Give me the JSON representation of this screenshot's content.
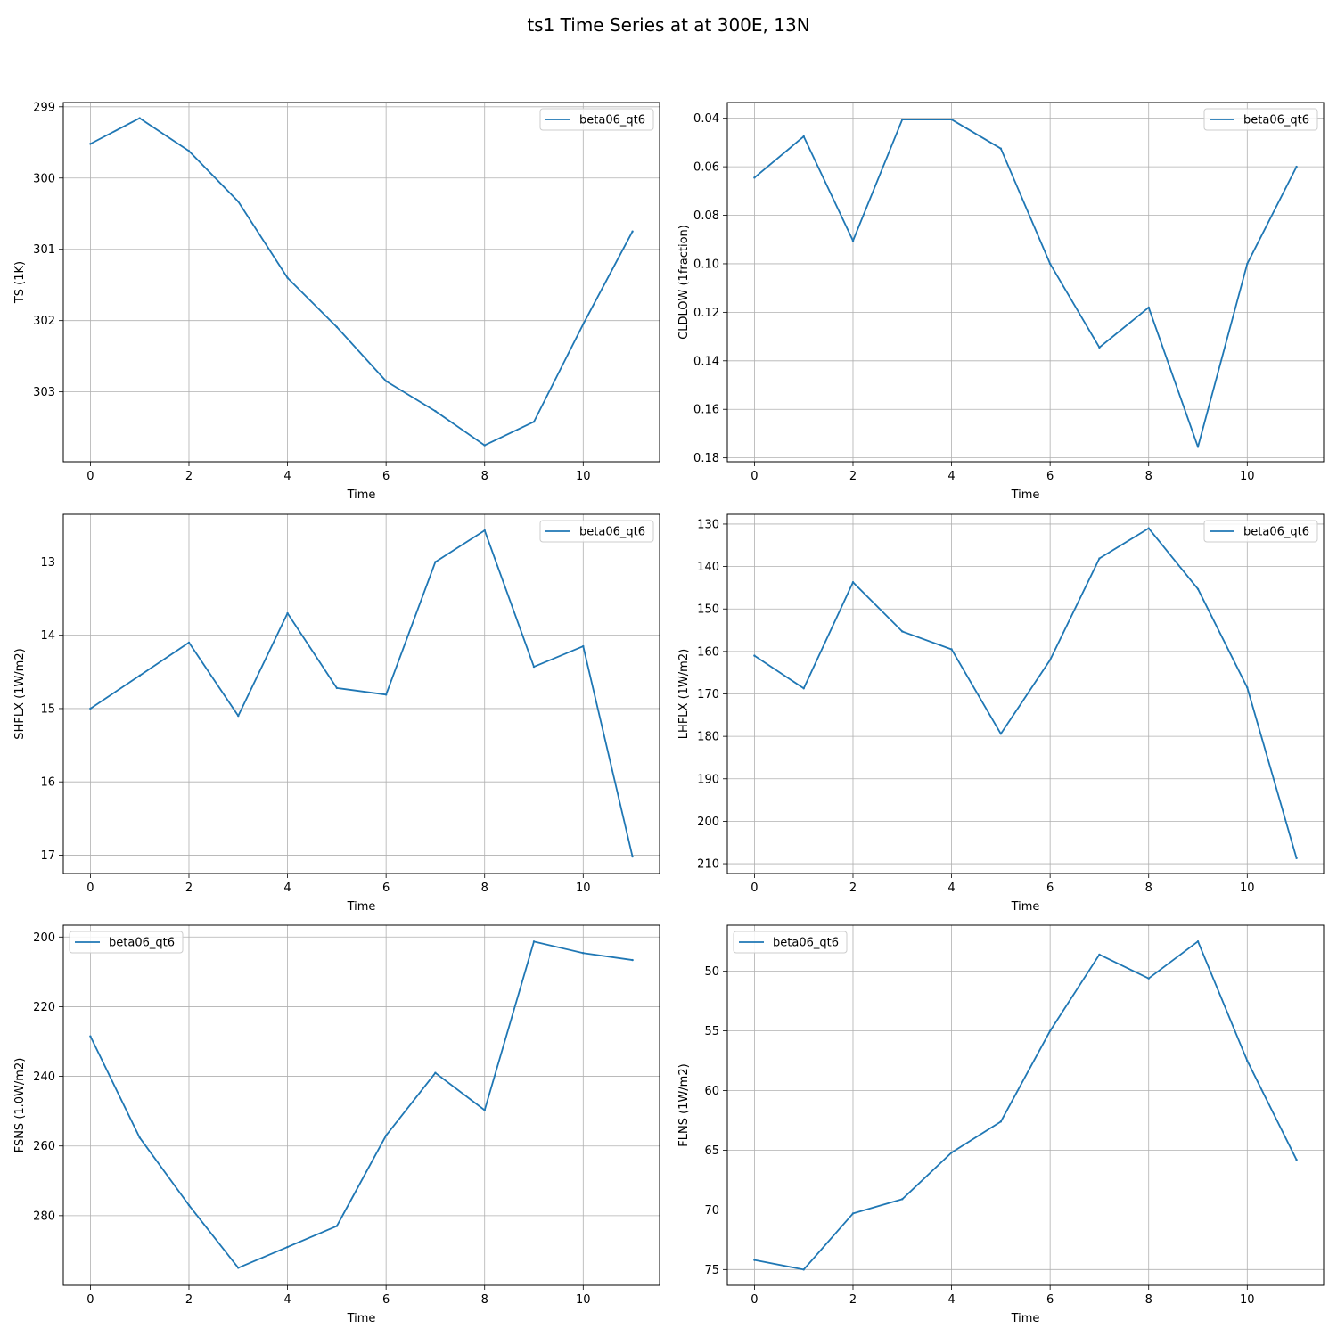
{
  "figure": {
    "title": "ts1 Time Series at at 300E, 13N"
  },
  "colors": {
    "series": "#1f77b4",
    "grid": "#b0b0b0",
    "axis": "#000000"
  },
  "chart_data": [
    {
      "type": "line",
      "xlabel": "Time",
      "ylabel": "TS (1K)",
      "x": [
        0,
        1,
        2,
        3,
        4,
        5,
        6,
        7,
        8,
        9,
        10,
        11
      ],
      "xlim": [
        -0.55,
        11.55
      ],
      "xticks": [
        0,
        2,
        4,
        6,
        8,
        10
      ],
      "ylim": [
        303.98,
        298.94
      ],
      "yticks": [
        299,
        300,
        301,
        302,
        303
      ],
      "yinverted": true,
      "grid": true,
      "legend": "upper right",
      "series": [
        {
          "name": "beta06_qt6",
          "values": [
            299.52,
            299.16,
            299.62,
            300.33,
            301.4,
            302.09,
            302.85,
            303.27,
            303.75,
            303.42,
            302.05,
            300.75
          ]
        }
      ]
    },
    {
      "type": "line",
      "xlabel": "Time",
      "ylabel": "CLDLOW (1fraction)",
      "x": [
        0,
        1,
        2,
        3,
        4,
        5,
        6,
        7,
        8,
        9,
        10,
        11
      ],
      "xlim": [
        -0.55,
        11.55
      ],
      "xticks": [
        0,
        2,
        4,
        6,
        8,
        10
      ],
      "ylim": [
        0.1816,
        0.0335
      ],
      "yticks": [
        0.04,
        0.06,
        0.08,
        0.1,
        0.12,
        0.14,
        0.16,
        0.18
      ],
      "ytick_labels": [
        "0.04",
        "0.06",
        "0.08",
        "0.10",
        "0.12",
        "0.14",
        "0.16",
        "0.18"
      ],
      "yinverted": true,
      "grid": true,
      "legend": "upper right",
      "series": [
        {
          "name": "beta06_qt6",
          "values": [
            0.0645,
            0.0475,
            0.0905,
            0.0405,
            0.0405,
            0.0525,
            0.1,
            0.1345,
            0.118,
            0.1755,
            0.1,
            0.06
          ]
        }
      ]
    },
    {
      "type": "line",
      "xlabel": "Time",
      "ylabel": "SHFLX (1W/m2)",
      "x": [
        0,
        1,
        2,
        3,
        4,
        5,
        6,
        7,
        8,
        9,
        10,
        11
      ],
      "xlim": [
        -0.55,
        11.55
      ],
      "xticks": [
        0,
        2,
        4,
        6,
        8,
        10
      ],
      "ylim": [
        17.25,
        12.35
      ],
      "yticks": [
        13,
        14,
        15,
        16,
        17
      ],
      "yinverted": true,
      "grid": true,
      "legend": "upper right",
      "series": [
        {
          "name": "beta06_qt6",
          "values": [
            15.0,
            14.55,
            14.1,
            15.1,
            13.7,
            14.72,
            14.81,
            13.0,
            12.57,
            14.43,
            14.15,
            17.02
          ]
        }
      ]
    },
    {
      "type": "line",
      "xlabel": "Time",
      "ylabel": "LHFLX (1W/m2)",
      "x": [
        0,
        1,
        2,
        3,
        4,
        5,
        6,
        7,
        8,
        9,
        10,
        11
      ],
      "xlim": [
        -0.55,
        11.55
      ],
      "xticks": [
        0,
        2,
        4,
        6,
        8,
        10
      ],
      "ylim": [
        212.3,
        127.7
      ],
      "yticks": [
        130,
        140,
        150,
        160,
        170,
        180,
        190,
        200,
        210
      ],
      "yinverted": true,
      "grid": true,
      "legend": "upper right",
      "series": [
        {
          "name": "beta06_qt6",
          "values": [
            161.0,
            168.7,
            143.7,
            155.3,
            159.5,
            179.4,
            162.0,
            138.1,
            131.0,
            145.3,
            168.5,
            208.7
          ]
        }
      ]
    },
    {
      "type": "line",
      "xlabel": "Time",
      "ylabel": "FSNS (1.0W/m2)",
      "x": [
        0,
        1,
        2,
        3,
        4,
        5,
        6,
        7,
        8,
        9,
        10,
        11
      ],
      "xlim": [
        -0.55,
        11.55
      ],
      "xticks": [
        0,
        2,
        4,
        6,
        8,
        10
      ],
      "ylim": [
        300.0,
        196.6
      ],
      "yticks": [
        200,
        220,
        240,
        260,
        280
      ],
      "yinverted": true,
      "grid": true,
      "legend": "upper left",
      "series": [
        {
          "name": "beta06_qt6",
          "values": [
            228.5,
            257.6,
            277.0,
            295.0,
            289.0,
            283.0,
            257.0,
            239.0,
            249.7,
            201.3,
            204.6,
            206.6
          ]
        }
      ]
    },
    {
      "type": "line",
      "xlabel": "Time",
      "ylabel": "FLNS (1W/m2)",
      "x": [
        0,
        1,
        2,
        3,
        4,
        5,
        6,
        7,
        8,
        9,
        10,
        11
      ],
      "xlim": [
        -0.55,
        11.55
      ],
      "xticks": [
        0,
        2,
        4,
        6,
        8,
        10
      ],
      "ylim": [
        76.32,
        46.14
      ],
      "yticks": [
        50,
        55,
        60,
        65,
        70,
        75
      ],
      "yinverted": true,
      "grid": true,
      "legend": "upper left",
      "series": [
        {
          "name": "beta06_qt6",
          "values": [
            74.2,
            75.0,
            70.3,
            69.1,
            65.2,
            62.6,
            55.0,
            48.6,
            50.6,
            47.5,
            57.5,
            65.8
          ]
        }
      ]
    }
  ]
}
